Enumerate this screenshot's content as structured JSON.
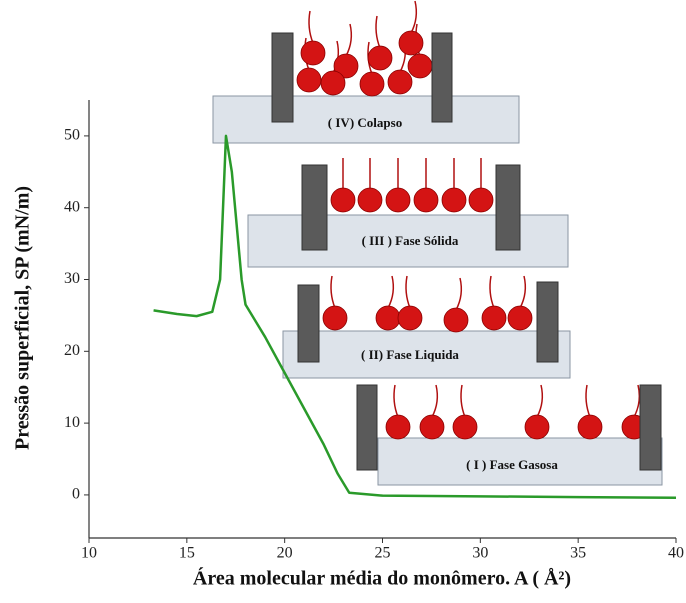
{
  "chart_data": {
    "type": "line",
    "x_label": "Área molecular média do monômero. A ( Å²)",
    "y_label": "Pressão superficial, SP (mN/m)",
    "x": [
      13.3,
      14.5,
      15.5,
      16.3,
      16.7,
      17.0,
      17.3,
      17.8,
      18.0,
      19.0,
      20.0,
      21.0,
      22.0,
      22.7,
      23.3,
      25,
      30,
      35,
      40
    ],
    "series": [
      {
        "color": "#2a9a2a",
        "values": [
          25.7,
          25.2,
          24.9,
          25.5,
          30,
          50,
          45,
          30,
          26.5,
          22,
          17,
          12,
          7,
          3,
          0.3,
          -0.1,
          -0.2,
          -0.3,
          -0.4
        ]
      }
    ],
    "xlim": [
      10,
      40
    ],
    "xticks": [
      10,
      15,
      20,
      25,
      30,
      35,
      40
    ],
    "ylim": [
      -6,
      55
    ],
    "yticks": [
      0,
      10,
      20,
      30,
      40,
      50
    ],
    "annotations": [
      "( IV) Colapso",
      "( III ) Fase Sólida",
      "( II) Fase Liquida",
      "( I ) Fase Gasosa"
    ]
  }
}
